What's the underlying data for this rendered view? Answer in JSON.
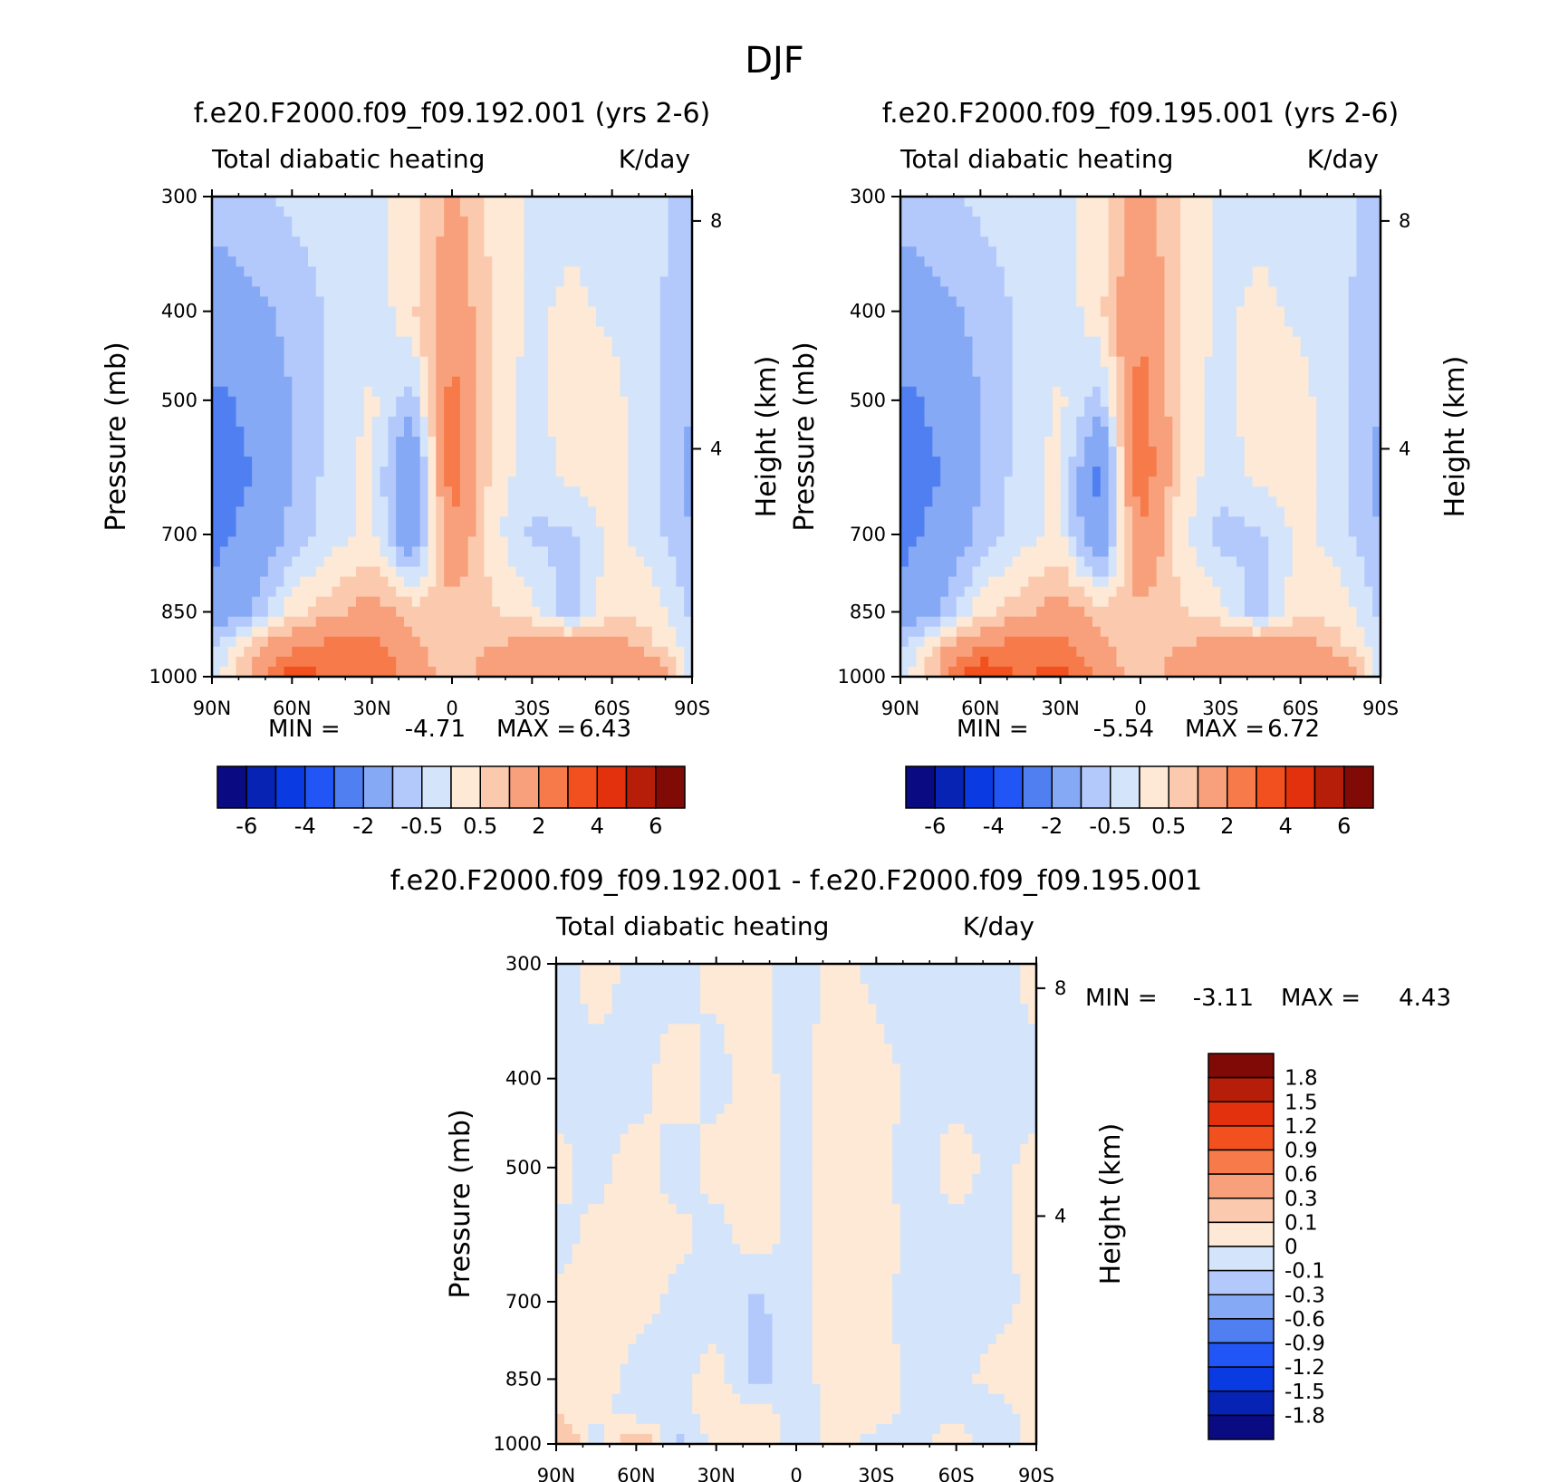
{
  "figure_title": "DJF",
  "colors": {
    "top_palette": [
      "#0a0a82",
      "#0723b4",
      "#0a3ae2",
      "#2255f5",
      "#4f7ff1",
      "#86a9f5",
      "#b4c9fb",
      "#d4e5fb",
      "#fde9d5",
      "#fbc9ad",
      "#f8a07b",
      "#f67a4a",
      "#f3501f",
      "#e3310e",
      "#b61e0a",
      "#800a06"
    ],
    "diff_palette": [
      "#0a0a82",
      "#0723b4",
      "#0a3ae2",
      "#2255f5",
      "#4f7ff1",
      "#86a9f5",
      "#b4c9fb",
      "#d4e5fb",
      "#fde9d5",
      "#fbc9ad",
      "#f8a07b",
      "#f67a4a",
      "#f3501f",
      "#e3310e",
      "#b61e0a",
      "#800a06"
    ]
  },
  "chart_data": [
    {
      "type": "heatmap",
      "id": "panel-192",
      "title": "f.e20.F2000.f09_f09.192.001 (yrs 2-6)",
      "subtitle_left": "Total diabatic heating",
      "subtitle_right": "K/day",
      "ylabel": "Pressure (mb)",
      "ylabel_right": "Height (km)",
      "x_ticks": [
        "90N",
        "60N",
        "30N",
        "0",
        "30S",
        "60S",
        "90S"
      ],
      "y_ticks": [
        "300",
        "400",
        "500",
        "700",
        "850",
        "1000"
      ],
      "y_ticks_right": [
        "8",
        "4"
      ],
      "x_values": [
        90,
        75,
        60,
        45,
        30,
        15,
        0,
        -15,
        -30,
        -45,
        -60,
        -75,
        -90
      ],
      "y_values": [
        300,
        400,
        500,
        600,
        700,
        850,
        925,
        1000
      ],
      "z": [
        [
          -0.8,
          -0.6,
          -0.4,
          -0.3,
          -0.2,
          0.2,
          1.2,
          0.4,
          -0.1,
          -0.1,
          -0.2,
          -0.4,
          -0.6
        ],
        [
          -1.4,
          -1.2,
          -0.8,
          -0.4,
          -0.4,
          0.4,
          1.6,
          0.4,
          -0.1,
          0.1,
          -0.1,
          -0.4,
          -0.8
        ],
        [
          -2.2,
          -1.8,
          -1.0,
          -0.4,
          0.1,
          -0.8,
          2.4,
          0.3,
          -0.2,
          0.3,
          0.2,
          -0.4,
          -1.0
        ],
        [
          -2.4,
          -2.0,
          -1.0,
          -0.3,
          0.2,
          -2.2,
          2.6,
          0.3,
          -0.3,
          0.2,
          0.2,
          -0.4,
          -1.2
        ],
        [
          -2.2,
          -1.8,
          -0.8,
          -0.2,
          0.1,
          -1.8,
          1.8,
          0.2,
          -0.6,
          -0.6,
          0.2,
          -0.3,
          -1.0
        ],
        [
          -1.8,
          -1.0,
          0.3,
          0.8,
          1.4,
          0.8,
          0.7,
          0.6,
          0.2,
          -0.8,
          0.4,
          0.3,
          -0.6
        ],
        [
          -0.6,
          0.8,
          1.6,
          2.4,
          2.2,
          1.2,
          0.6,
          1.0,
          1.2,
          1.4,
          1.4,
          0.6,
          -0.3
        ],
        [
          -0.4,
          1.2,
          4.2,
          2.6,
          3.2,
          1.6,
          0.5,
          1.4,
          1.6,
          1.2,
          1.0,
          2.2,
          -0.2
        ]
      ],
      "min_label": "MIN =",
      "min_value": "-4.71",
      "max_label": "MAX =",
      "max_value": "6.43",
      "colorbar_labels": [
        "-6",
        "-4",
        "-2",
        "-0.5",
        "0.5",
        "2",
        "4",
        "6"
      ]
    },
    {
      "type": "heatmap",
      "id": "panel-195",
      "title": "f.e20.F2000.f09_f09.195.001 (yrs 2-6)",
      "subtitle_left": "Total diabatic heating",
      "subtitle_right": "K/day",
      "ylabel": "Pressure (mb)",
      "ylabel_right": "Height (km)",
      "x_ticks": [
        "90N",
        "60N",
        "30N",
        "0",
        "30S",
        "60S",
        "90S"
      ],
      "y_ticks": [
        "300",
        "400",
        "500",
        "700",
        "850",
        "1000"
      ],
      "y_ticks_right": [
        "8",
        "4"
      ],
      "x_values": [
        90,
        75,
        60,
        45,
        30,
        15,
        0,
        -15,
        -30,
        -45,
        -60,
        -75,
        -90
      ],
      "y_values": [
        300,
        400,
        500,
        600,
        700,
        850,
        925,
        1000
      ],
      "z": [
        [
          -0.8,
          -0.6,
          -0.4,
          -0.3,
          -0.2,
          0.2,
          1.4,
          0.4,
          -0.1,
          -0.1,
          -0.2,
          -0.4,
          -0.6
        ],
        [
          -1.4,
          -1.2,
          -0.8,
          -0.4,
          -0.4,
          0.4,
          1.8,
          0.4,
          -0.1,
          0.1,
          -0.1,
          -0.4,
          -0.8
        ],
        [
          -2.2,
          -1.8,
          -1.0,
          -0.4,
          0.1,
          -0.8,
          2.6,
          0.3,
          -0.2,
          0.3,
          0.2,
          -0.4,
          -1.0
        ],
        [
          -2.4,
          -2.0,
          -1.0,
          -0.3,
          0.2,
          -2.4,
          2.8,
          0.3,
          -0.3,
          0.2,
          0.2,
          -0.4,
          -1.2
        ],
        [
          -2.2,
          -1.8,
          -0.8,
          -0.2,
          0.1,
          -2.0,
          2.0,
          0.2,
          -0.7,
          -0.6,
          0.2,
          -0.3,
          -1.0
        ],
        [
          -1.8,
          -1.0,
          0.3,
          0.8,
          1.4,
          0.8,
          0.8,
          0.6,
          0.2,
          -0.8,
          0.4,
          0.3,
          -0.6
        ],
        [
          -0.6,
          0.8,
          1.6,
          2.6,
          2.4,
          1.2,
          0.6,
          1.0,
          1.2,
          1.4,
          1.4,
          0.6,
          -0.3
        ],
        [
          -0.4,
          1.2,
          4.6,
          2.8,
          3.4,
          1.6,
          0.5,
          1.4,
          1.6,
          1.2,
          1.0,
          2.2,
          -0.2
        ]
      ],
      "min_label": "MIN =",
      "min_value": "-5.54",
      "max_label": "MAX =",
      "max_value": "6.72",
      "colorbar_labels": [
        "-6",
        "-4",
        "-2",
        "-0.5",
        "0.5",
        "2",
        "4",
        "6"
      ]
    },
    {
      "type": "heatmap",
      "id": "panel-diff",
      "title": "f.e20.F2000.f09_f09.192.001 - f.e20.F2000.f09_f09.195.001",
      "subtitle_left": "Total diabatic heating",
      "subtitle_right": "K/day",
      "ylabel": "Pressure (mb)",
      "ylabel_right": "Height (km)",
      "x_ticks": [
        "90N",
        "60N",
        "30N",
        "0",
        "30S",
        "60S",
        "90S"
      ],
      "y_ticks": [
        "300",
        "400",
        "500",
        "700",
        "850",
        "1000"
      ],
      "y_ticks_right": [
        "8",
        "4"
      ],
      "x_values": [
        90,
        75,
        60,
        45,
        30,
        15,
        0,
        -15,
        -30,
        -45,
        -60,
        -75,
        -90
      ],
      "y_values": [
        300,
        400,
        500,
        600,
        700,
        850,
        925,
        1000
      ],
      "z": [
        [
          -0.05,
          0.04,
          -0.03,
          -0.04,
          0.03,
          0.05,
          -0.06,
          0.05,
          -0.03,
          -0.04,
          -0.05,
          -0.05,
          0.05
        ],
        [
          -0.04,
          -0.03,
          -0.04,
          0.05,
          -0.04,
          0.05,
          -0.05,
          0.06,
          0.04,
          -0.03,
          -0.04,
          -0.04,
          -0.04
        ],
        [
          0.04,
          -0.04,
          0.05,
          -0.05,
          0.04,
          0.06,
          -0.04,
          0.07,
          0.04,
          -0.05,
          0.05,
          -0.04,
          0.04
        ],
        [
          -0.05,
          0.04,
          0.06,
          0.04,
          -0.05,
          0.05,
          -0.05,
          0.06,
          0.05,
          -0.04,
          -0.04,
          -0.05,
          0.06
        ],
        [
          0.04,
          0.05,
          0.05,
          -0.04,
          -0.06,
          -0.12,
          -0.05,
          0.05,
          0.04,
          -0.05,
          -0.04,
          -0.06,
          0.05
        ],
        [
          0.05,
          0.07,
          -0.05,
          -0.04,
          0.05,
          -0.13,
          -0.06,
          0.06,
          0.05,
          -0.04,
          -0.05,
          0.06,
          0.05
        ],
        [
          0.06,
          0.04,
          -0.06,
          -0.05,
          0.06,
          0.05,
          -0.05,
          0.04,
          0.06,
          -0.05,
          -0.06,
          -0.08,
          0.07
        ],
        [
          0.35,
          -0.12,
          0.28,
          -0.15,
          0.05,
          0.06,
          -0.05,
          0.05,
          -0.05,
          -0.05,
          0.12,
          -0.1,
          0.05
        ]
      ],
      "min_label": "MIN =",
      "min_value": "-3.11",
      "max_label": "MAX =",
      "max_value": "4.43",
      "colorbar_labels": [
        "1.8",
        "1.5",
        "1.2",
        "0.9",
        "0.6",
        "0.3",
        "0.1",
        "0",
        "-0.1",
        "-0.3",
        "-0.6",
        "-0.9",
        "-1.2",
        "-1.5",
        "-1.8"
      ]
    }
  ]
}
